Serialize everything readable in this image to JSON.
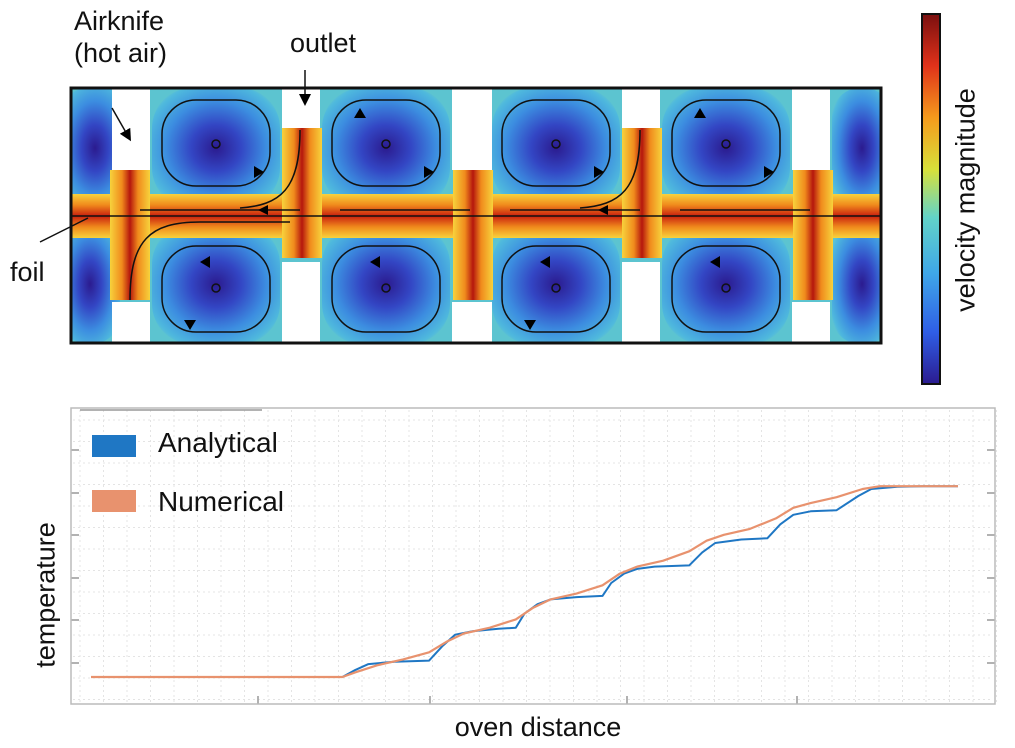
{
  "annotations": {
    "airknife_line1": "Airknife",
    "airknife_line2": "(hot air)",
    "outlet": "outlet",
    "foil": "foil"
  },
  "colorbar": {
    "label": "velocity magnitude",
    "stops": [
      "#2b1b8f",
      "#2f5ee6",
      "#3fa7e8",
      "#62d3c8",
      "#d8e03a",
      "#f59a1c",
      "#e0321a",
      "#7a0f0f"
    ]
  },
  "chart_data": {
    "type": "line",
    "xlabel": "oven distance",
    "ylabel": "temperature",
    "xlim": [
      0,
      10
    ],
    "ylim": [
      0,
      10
    ],
    "grid": true,
    "legend_position": "top-left",
    "series": [
      {
        "name": "Analytical",
        "color": "#1f77c4",
        "x": [
          0.0,
          2.9,
          3.05,
          3.2,
          3.5,
          3.9,
          4.05,
          4.2,
          4.4,
          4.7,
          4.9,
          5.0,
          5.15,
          5.3,
          5.6,
          5.9,
          6.0,
          6.15,
          6.3,
          6.5,
          6.9,
          7.05,
          7.2,
          7.5,
          7.8,
          7.95,
          8.1,
          8.3,
          8.6,
          8.85,
          9.0,
          9.3,
          9.6,
          10.0
        ],
        "y": [
          0.0,
          0.0,
          0.3,
          0.55,
          0.65,
          0.7,
          1.3,
          1.8,
          1.95,
          2.05,
          2.1,
          2.7,
          3.1,
          3.3,
          3.4,
          3.45,
          4.0,
          4.4,
          4.6,
          4.7,
          4.75,
          5.3,
          5.7,
          5.85,
          5.9,
          6.5,
          6.9,
          7.05,
          7.1,
          7.7,
          8.0,
          8.1,
          8.12,
          8.12
        ]
      },
      {
        "name": "Numerical",
        "color": "#e8926e",
        "x": [
          0.0,
          2.9,
          3.05,
          3.3,
          3.6,
          3.9,
          4.1,
          4.3,
          4.6,
          4.9,
          5.1,
          5.3,
          5.6,
          5.9,
          6.1,
          6.3,
          6.6,
          6.9,
          7.1,
          7.3,
          7.6,
          7.9,
          8.1,
          8.3,
          8.6,
          8.9,
          9.1,
          9.4,
          10.0
        ],
        "y": [
          0.0,
          0.0,
          0.2,
          0.5,
          0.75,
          1.05,
          1.5,
          1.85,
          2.1,
          2.45,
          2.95,
          3.3,
          3.55,
          3.9,
          4.4,
          4.7,
          4.95,
          5.35,
          5.8,
          6.05,
          6.3,
          6.75,
          7.2,
          7.4,
          7.65,
          8.0,
          8.12,
          8.12,
          8.12
        ]
      }
    ]
  }
}
